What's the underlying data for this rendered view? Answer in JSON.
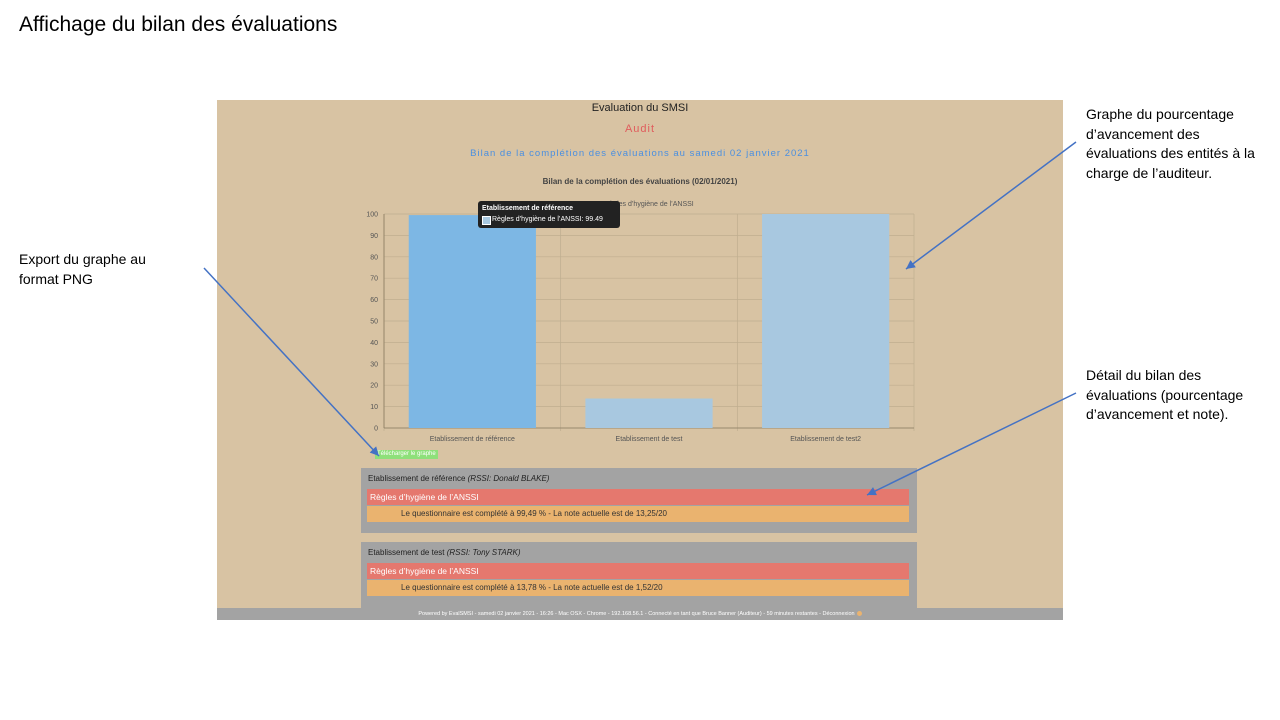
{
  "slide": {
    "title": "Affichage du bilan des évaluations",
    "annotations": {
      "export": "Export du graphe au format PNG",
      "graph": "Graphe du pourcentage d’avancement des évaluations des entités à la charge de l’auditeur.",
      "detail": "Détail du bilan des évaluations (pourcentage d’avancement et note)."
    }
  },
  "app": {
    "title": "Evaluation du SMSI",
    "subtitle": "Audit",
    "heading": "Bilan de la complétion des évaluations au samedi 02 janvier 2021",
    "download_button": "Télécharger le graphe",
    "colors": {
      "background": "#d8c3a3",
      "bar_active": "#7db7e4",
      "bar": "#a8c8e0",
      "category": "#e5786e",
      "detail": "#eab36f",
      "heading": "#4a8fe0",
      "subtitle": "#e05c5c"
    }
  },
  "chart_data": {
    "type": "bar",
    "title": "Bilan de la complétion des évaluations (02/01/2021)",
    "legend": "Règles d’hygiène de l’ANSSI",
    "categories": [
      "Etablissement de référence",
      "Etablissement de test",
      "Etablissement de test2"
    ],
    "series": [
      {
        "name": "Règles d’hygiène de l’ANSSI",
        "values": [
          99.49,
          13.78,
          100
        ]
      }
    ],
    "ylim": [
      0,
      100
    ],
    "yticks": [
      "0",
      "10",
      "20",
      "30",
      "40",
      "50",
      "60",
      "70",
      "80",
      "90",
      "100"
    ],
    "grid": true,
    "tooltip": {
      "title": "Etablissement de référence",
      "line": "Règles d’hygiène de l’ANSSI: 99.49"
    }
  },
  "panels": [
    {
      "entity": "Etablissement de référence",
      "rssi": "(RSSI: Donald BLAKE)",
      "category": "Règles d’hygiène de l’ANSSI",
      "detail": "Le questionnaire est complété à 99,49 % - La note actuelle est de 13,25/20"
    },
    {
      "entity": "Etablissement de test",
      "rssi": "(RSSI: Tony STARK)",
      "category": "Règles d’hygiène de l’ANSSI",
      "detail": "Le questionnaire est complété à 13,78 % - La note actuelle est de 1,52/20"
    }
  ],
  "footer": {
    "text": "Powered by EvalSMSI - samedi 02 janvier 2021 - 16:26 - Mac OSX - Chrome - 192.168.56.1 - Connecté en tant que Bruce Banner (Auditeur) - 59 minutes restantes - Déconnexion"
  }
}
